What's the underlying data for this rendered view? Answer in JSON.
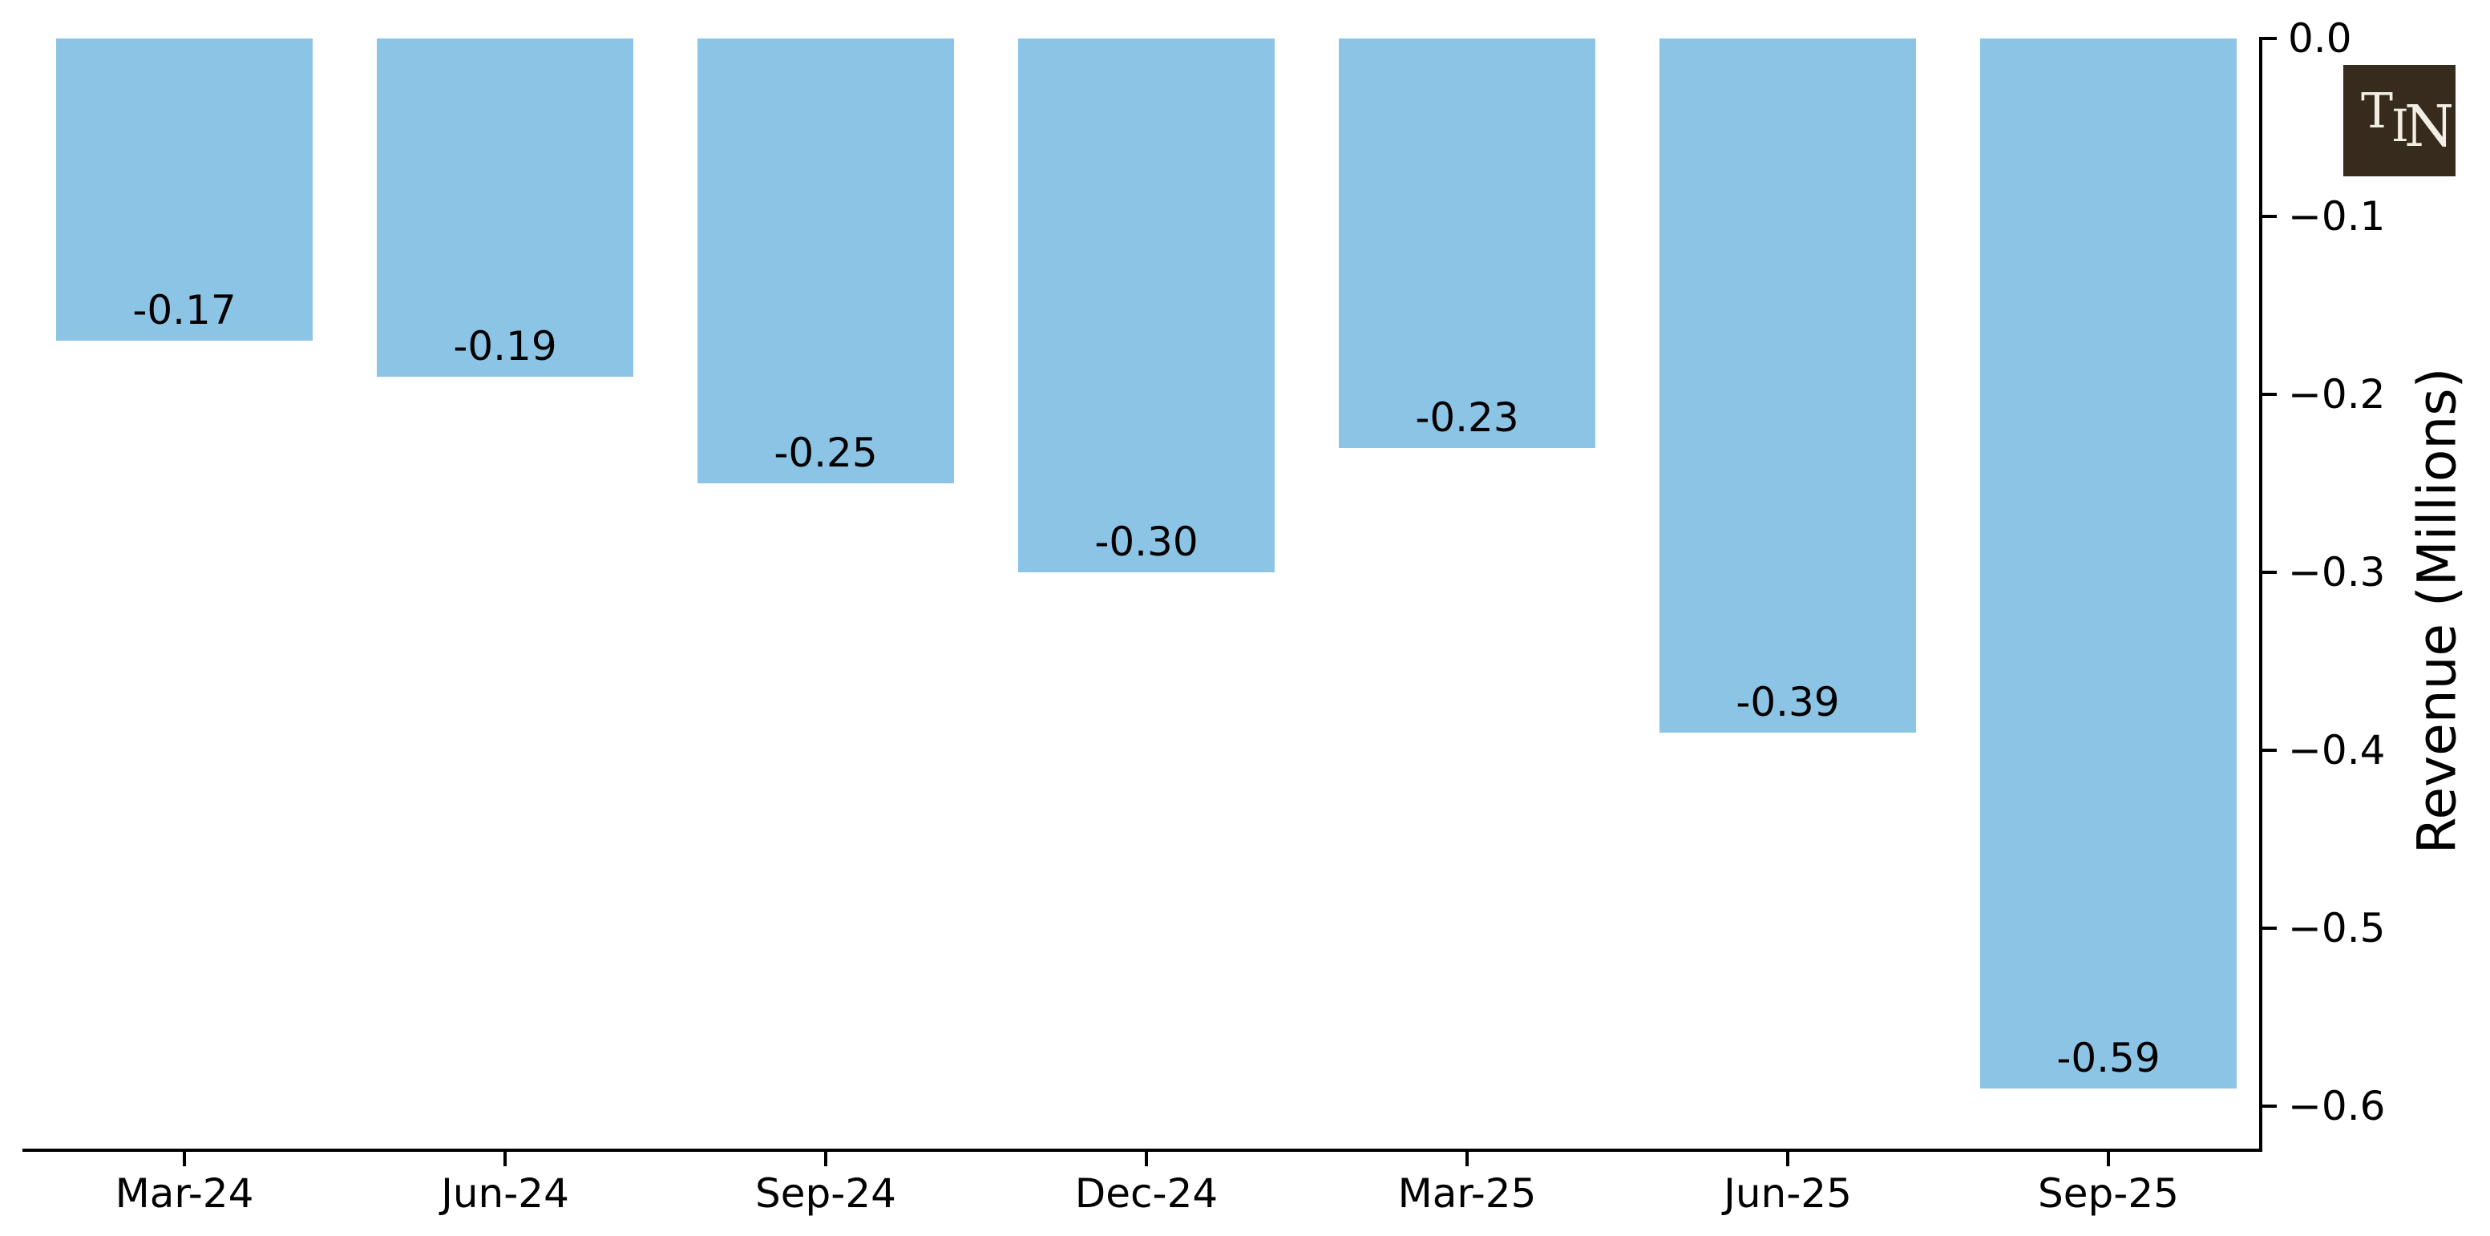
{
  "chart_data": {
    "type": "bar",
    "title": "",
    "categories": [
      "Mar-24",
      "Jun-24",
      "Sep-24",
      "Dec-24",
      "Mar-25",
      "Jun-25",
      "Sep-25"
    ],
    "values": [
      -0.17,
      -0.19,
      -0.25,
      -0.3,
      -0.23,
      -0.39,
      -0.59
    ],
    "value_labels": [
      "-0.17",
      "-0.19",
      "-0.25",
      "-0.30",
      "-0.23",
      "-0.39",
      "-0.59"
    ],
    "series_name": "Revenue",
    "xlabel": "",
    "ylabel": "Revenue (Millions)",
    "ylim": [
      -0.625,
      0.0
    ],
    "yticks": [
      {
        "value": 0.0,
        "label": "0.0"
      },
      {
        "value": -0.1,
        "label": "−0.1"
      },
      {
        "value": -0.2,
        "label": "−0.2"
      },
      {
        "value": -0.3,
        "label": "−0.3"
      },
      {
        "value": -0.4,
        "label": "−0.4"
      },
      {
        "value": -0.5,
        "label": "−0.5"
      },
      {
        "value": -0.6,
        "label": "−0.6"
      }
    ],
    "grid": false,
    "legend_position": "none",
    "bar_color": "#8CC4E6",
    "axis_color": "#000000",
    "label_color": "#000000",
    "y_axis_side": "right",
    "bar_label_position": "inside-bottom"
  },
  "logo": {
    "letters": [
      "T",
      "I",
      "N"
    ],
    "background_color": "#372B1D",
    "text_color": "#F2EEE4"
  }
}
